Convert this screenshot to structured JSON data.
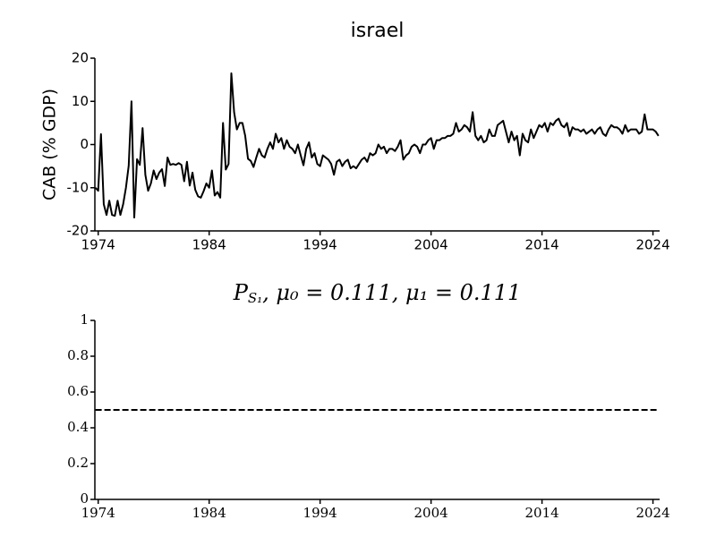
{
  "chart_data": [
    {
      "type": "line",
      "title": "israel",
      "ylabel": "CAB (% GDP)",
      "color": "#000000",
      "linestyle": "solid",
      "x": [
        1973.75,
        1974,
        1974.25,
        1974.5,
        1974.75,
        1975,
        1975.25,
        1975.5,
        1975.75,
        1976,
        1976.25,
        1976.5,
        1976.75,
        1977,
        1977.25,
        1977.5,
        1977.75,
        1978,
        1978.25,
        1978.5,
        1978.75,
        1979,
        1979.25,
        1979.5,
        1979.75,
        1980,
        1980.25,
        1980.5,
        1980.75,
        1981,
        1981.25,
        1981.5,
        1981.75,
        1982,
        1982.25,
        1982.5,
        1982.75,
        1983,
        1983.25,
        1983.5,
        1983.75,
        1984,
        1984.25,
        1984.5,
        1984.75,
        1985,
        1985.25,
        1985.5,
        1985.75,
        1986,
        1986.25,
        1986.5,
        1986.75,
        1987,
        1987.25,
        1987.5,
        1987.75,
        1988,
        1988.25,
        1988.5,
        1988.75,
        1989,
        1989.25,
        1989.5,
        1989.75,
        1990,
        1990.25,
        1990.5,
        1990.75,
        1991,
        1991.25,
        1991.5,
        1991.75,
        1992,
        1992.25,
        1992.5,
        1992.75,
        1993,
        1993.25,
        1993.5,
        1993.75,
        1994,
        1994.25,
        1994.5,
        1994.75,
        1995,
        1995.25,
        1995.5,
        1995.75,
        1996,
        1996.25,
        1996.5,
        1996.75,
        1997,
        1997.25,
        1997.5,
        1997.75,
        1998,
        1998.25,
        1998.5,
        1998.75,
        1999,
        1999.25,
        1999.5,
        1999.75,
        2000,
        2000.25,
        2000.5,
        2000.75,
        2001,
        2001.25,
        2001.5,
        2001.75,
        2002,
        2002.25,
        2002.5,
        2002.75,
        2003,
        2003.25,
        2003.5,
        2003.75,
        2004,
        2004.25,
        2004.5,
        2004.75,
        2005,
        2005.25,
        2005.5,
        2005.75,
        2006,
        2006.25,
        2006.5,
        2006.75,
        2007,
        2007.25,
        2007.5,
        2007.75,
        2008,
        2008.25,
        2008.5,
        2008.75,
        2009,
        2009.25,
        2009.5,
        2009.75,
        2010,
        2010.25,
        2010.5,
        2010.75,
        2011,
        2011.25,
        2011.5,
        2011.75,
        2012,
        2012.25,
        2012.5,
        2012.75,
        2013,
        2013.25,
        2013.5,
        2013.75,
        2014,
        2014.25,
        2014.5,
        2014.75,
        2015,
        2015.25,
        2015.5,
        2015.75,
        2016,
        2016.25,
        2016.5,
        2016.75,
        2017,
        2017.25,
        2017.5,
        2017.75,
        2018,
        2018.25,
        2018.5,
        2018.75,
        2019,
        2019.25,
        2019.5,
        2019.75,
        2020,
        2020.25,
        2020.5,
        2020.75,
        2021,
        2021.25,
        2021.5,
        2021.75,
        2022,
        2022.25,
        2022.5,
        2022.75,
        2023,
        2023.25,
        2023.5,
        2023.75,
        2024,
        2024.25,
        2024.5
      ],
      "values": [
        -10,
        -10.7,
        2.4,
        -13.8,
        -16.3,
        -13,
        -16.3,
        -16.5,
        -13,
        -16.3,
        -13.8,
        -10,
        -4.9,
        10,
        -16.9,
        -3.4,
        -4.7,
        3.8,
        -7,
        -10.7,
        -9,
        -6,
        -8,
        -6.5,
        -5.7,
        -9.6,
        -3,
        -4.7,
        -4.5,
        -4.7,
        -4.3,
        -4.7,
        -8.5,
        -4,
        -9.5,
        -6.5,
        -10.5,
        -12,
        -12.3,
        -10.8,
        -9,
        -10,
        -6,
        -11.8,
        -11,
        -12.3,
        5,
        -5.8,
        -4.5,
        16.5,
        7.5,
        3.5,
        5,
        5,
        2,
        -3.3,
        -3.8,
        -5.2,
        -3,
        -1,
        -2.5,
        -3,
        -1,
        0.5,
        -1,
        2.5,
        0.5,
        1.5,
        -1,
        1,
        -0.5,
        -1,
        -2,
        0,
        -2.5,
        -4.8,
        -1,
        0.5,
        -3,
        -2,
        -4.5,
        -5,
        -2.5,
        -3,
        -3.5,
        -4.5,
        -7,
        -4,
        -3.5,
        -5,
        -4,
        -3.5,
        -5.5,
        -5,
        -5.5,
        -4.5,
        -3.5,
        -3,
        -4,
        -2,
        -2.5,
        -2,
        0,
        -1,
        -0.5,
        -2,
        -1,
        -1,
        -1.5,
        -0.5,
        1,
        -3.5,
        -2.5,
        -2,
        -0.5,
        0,
        -0.5,
        -2,
        0,
        0,
        1,
        1.5,
        -1,
        1,
        1,
        1.5,
        1.5,
        2,
        2,
        2.5,
        5,
        3,
        3.5,
        4.5,
        4,
        3,
        7.5,
        2,
        1,
        2,
        0.5,
        1,
        3.5,
        2,
        2,
        4.5,
        5,
        5.5,
        3,
        0.5,
        3,
        1,
        2,
        -2.5,
        2.5,
        1,
        0.5,
        3.5,
        1.5,
        3,
        4.5,
        4,
        5,
        3,
        5,
        4.5,
        5.5,
        6,
        4.5,
        4,
        5,
        2,
        4,
        3.5,
        3.5,
        3,
        3.5,
        2.5,
        3,
        3.5,
        2.5,
        3.5,
        4,
        2.5,
        2,
        3.5,
        4.5,
        4,
        4,
        3.5,
        2.5,
        4.5,
        3,
        3.5,
        3.5,
        3.5,
        2.5,
        3,
        7,
        3.5,
        3.5,
        3.5,
        3,
        2
      ],
      "xlim": [
        1973.7,
        2024.6
      ],
      "xticks": [
        1974,
        1984,
        1994,
        2004,
        2014,
        2024
      ],
      "ylim": [
        -20,
        20
      ],
      "yticks": [
        -20,
        -10,
        0,
        10,
        20
      ]
    },
    {
      "type": "line",
      "title": {
        "symbol": "P",
        "subscript": "S₁",
        "rest": ", μ₀ = 0.111, μ₁ = 0.111"
      },
      "color": "#000000",
      "linestyle": "dashed",
      "x": [
        1973.75,
        2024.5
      ],
      "values": [
        0.5,
        0.5
      ],
      "xlim": [
        1973.7,
        2024.6
      ],
      "xticks": [
        1974,
        1984,
        1994,
        2004,
        2014,
        2024
      ],
      "ylim": [
        0,
        1
      ],
      "yticks": [
        0,
        0.2,
        0.4,
        0.6,
        0.8,
        1
      ]
    }
  ]
}
